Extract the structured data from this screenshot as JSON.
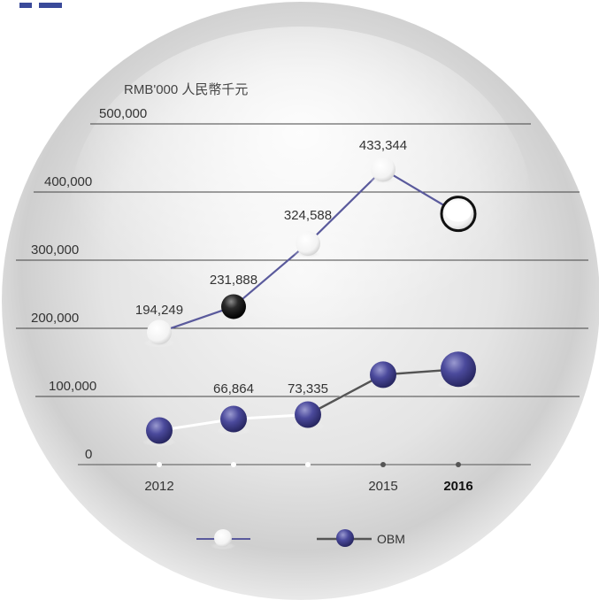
{
  "chart_data": {
    "type": "line",
    "unit_label": "RMB'000 人民幣千元",
    "categories": [
      "2012",
      "",
      "",
      "2015",
      "2016"
    ],
    "bold_category_index": 4,
    "ylim": [
      0,
      500000
    ],
    "yticks": [
      0,
      100000,
      200000,
      300000,
      400000,
      500000
    ],
    "ytick_labels": [
      "0",
      "100,000",
      "200,000",
      "300,000",
      "400,000",
      "500,000"
    ],
    "grid": true,
    "legend_position": "bottom",
    "series": [
      {
        "name": "",
        "color": "#5a5a9c",
        "marker": "white-sphere",
        "values": [
          194249,
          231888,
          324588,
          433344,
          368000
        ],
        "labels": [
          "194,249",
          "231,888",
          "324,588",
          "433,344",
          ""
        ]
      },
      {
        "name": "OBM",
        "color": "#555555",
        "marker": "blue-sphere",
        "values": [
          50000,
          66864,
          73335,
          132000,
          140000
        ],
        "labels": [
          "",
          "66,864",
          "73,335",
          "",
          ""
        ]
      }
    ]
  },
  "colors": {
    "axis_dot": "#555555",
    "grid_line": "#444444",
    "sphere_blue": "#4b4a9c",
    "sphere_dark": "#222222",
    "header_bar": "#3a4a9a"
  }
}
